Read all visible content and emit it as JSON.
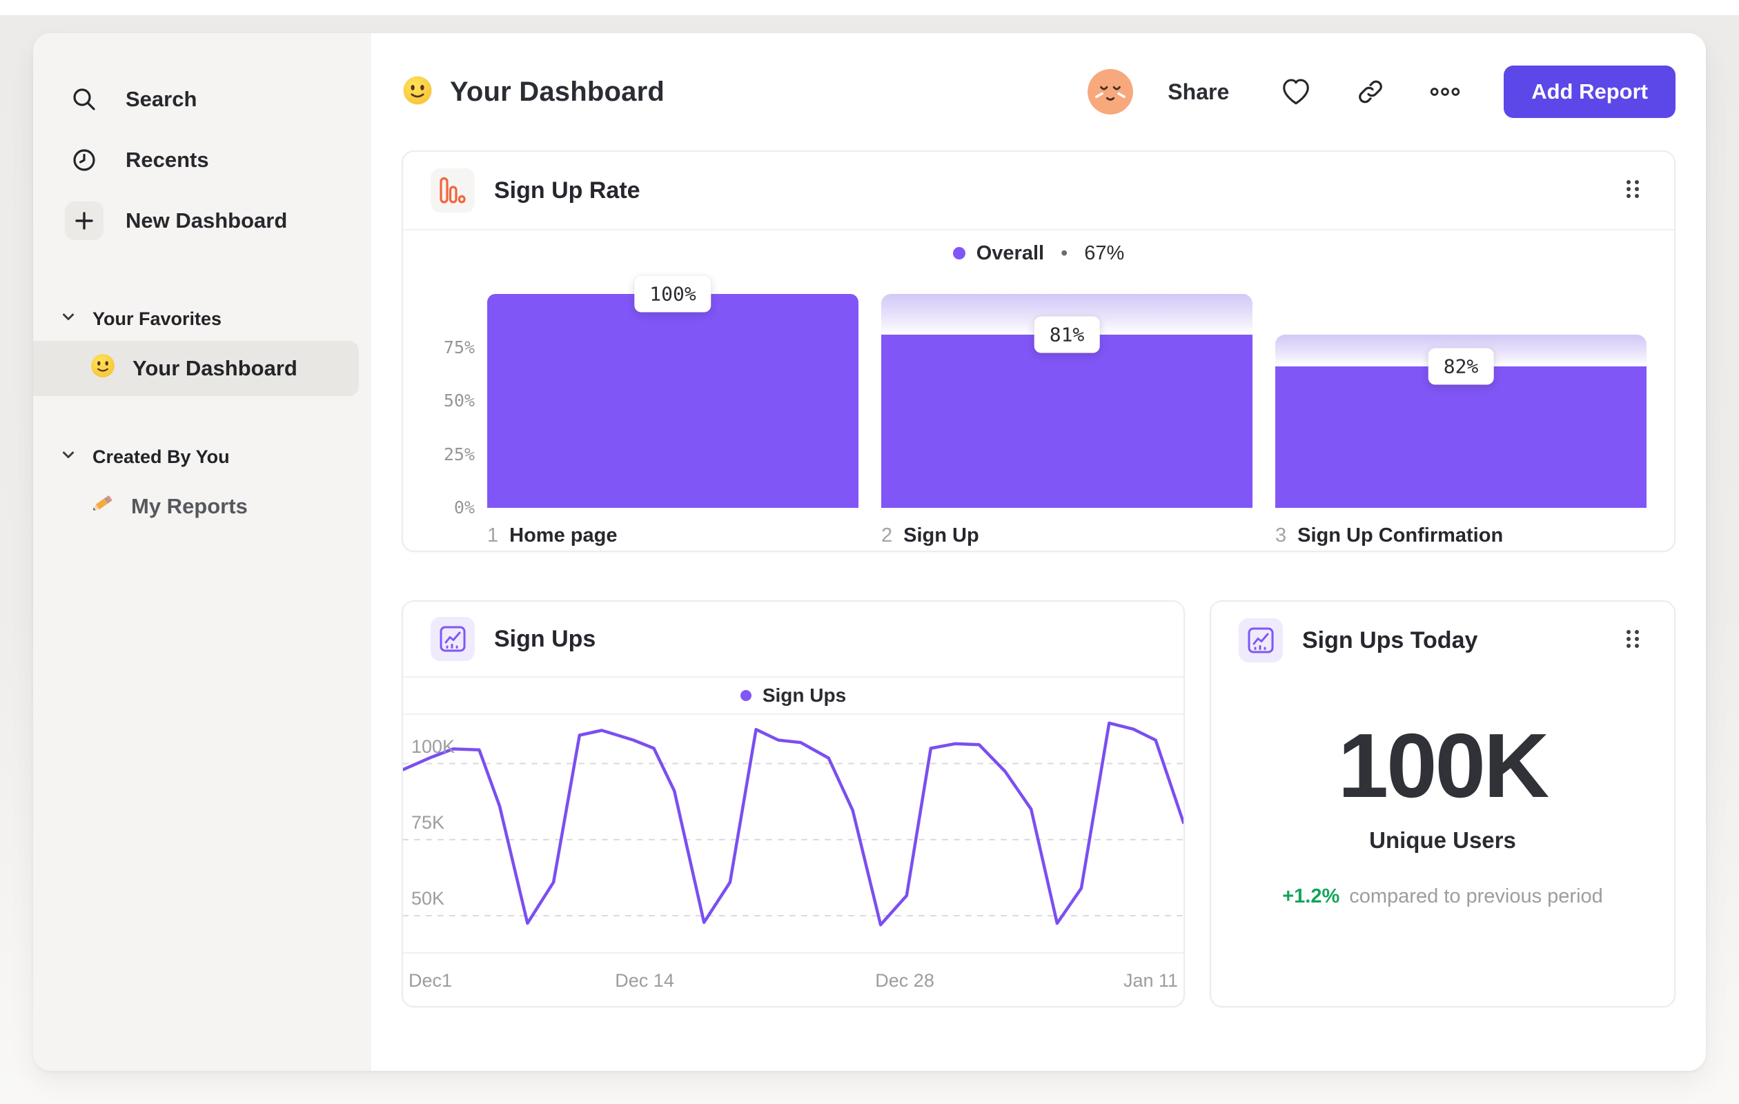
{
  "colors": {
    "accent_button": "#5C47E8",
    "series_purple": "#8156F6",
    "line_purple": "#7A4FF0",
    "funnel_orange": "#F2653C",
    "delta_green": "#13A45B"
  },
  "sidebar": {
    "nav": [
      {
        "label": "Search",
        "icon": "search-icon"
      },
      {
        "label": "Recents",
        "icon": "clock-icon"
      },
      {
        "label": "New Dashboard",
        "icon": "plus-icon"
      }
    ],
    "sections": [
      {
        "label": "Your Favorites",
        "icon": "chevron-down-icon",
        "items": [
          {
            "label": "Your Dashboard",
            "icon": "smiley-emoji",
            "selected": true
          }
        ]
      },
      {
        "label": "Created By You",
        "icon": "chevron-down-icon",
        "items": [
          {
            "label": "My Reports",
            "icon": "pencil-emoji",
            "selected": false
          }
        ]
      }
    ]
  },
  "header": {
    "title": "Your Dashboard",
    "title_emoji": "slightly-smiling-face-emoji",
    "avatar": "relieved-face-avatar",
    "share_label": "Share",
    "action_icons": [
      "heart-icon",
      "link-icon",
      "more-horizontal-icon"
    ],
    "add_report_label": "Add Report"
  },
  "cards": {
    "signup_rate": {
      "title": "Sign Up Rate",
      "icon": "funnel-bars-icon",
      "legend": {
        "swatch_color": "#8156F6",
        "name": "Overall",
        "separator": "•",
        "value": "67%"
      }
    },
    "sign_ups": {
      "title": "Sign Ups",
      "icon": "line-chart-icon",
      "legend": {
        "swatch_color": "#8156F6",
        "name": "Sign Ups"
      }
    },
    "sign_ups_today": {
      "title": "Sign Ups Today",
      "icon": "line-chart-icon",
      "value": "100K",
      "value_label": "Unique Users",
      "delta": "+1.2%",
      "delta_note": "compared to previous period"
    }
  },
  "chart_data": [
    {
      "type": "bar",
      "chart": "funnel",
      "title": "Sign Up Rate",
      "overall_conversion": "67%",
      "bar_color": "#8156F6",
      "ylim": [
        0,
        100
      ],
      "y_ticks": [
        {
          "label": "75%",
          "v": 75
        },
        {
          "label": "50%",
          "v": 50
        },
        {
          "label": "25%",
          "v": 25
        },
        {
          "label": "0%",
          "v": 0
        }
      ],
      "steps": [
        {
          "index": "1",
          "label": "Home page",
          "badge": "100%",
          "solid_pct": 100,
          "from_pct": 100
        },
        {
          "index": "2",
          "label": "Sign Up",
          "badge": "81%",
          "solid_pct": 81,
          "from_pct": 100
        },
        {
          "index": "3",
          "label": "Sign Up Confirmation",
          "badge": "82%",
          "solid_pct": 66,
          "from_pct": 81
        }
      ]
    },
    {
      "type": "line",
      "title": "Sign Ups",
      "x_range": [
        0,
        42
      ],
      "y_range": [
        38,
        116
      ],
      "unit": "K",
      "grid": "dashed-horizontal",
      "legend_position": "top-center",
      "gridlines": [
        {
          "label": "100K",
          "v": 100
        },
        {
          "label": "75K",
          "v": 75
        },
        {
          "label": "50K",
          "v": 50
        }
      ],
      "x_ticks": [
        {
          "label": "Dec1",
          "day": 0,
          "align": "left"
        },
        {
          "label": "Dec 14",
          "day": 13,
          "align": "center"
        },
        {
          "label": "Dec 28",
          "day": 27,
          "align": "center"
        },
        {
          "label": "Jan 11",
          "day": 41,
          "align": "right"
        }
      ],
      "series": [
        {
          "name": "Sign Ups",
          "color": "#7A4FF0",
          "points": [
            [
              0,
              98
            ],
            [
              1.5,
              102
            ],
            [
              2.7,
              104.8
            ],
            [
              4.1,
              104.5
            ],
            [
              5.2,
              86
            ],
            [
              6.7,
              47.5
            ],
            [
              8.1,
              61
            ],
            [
              9.5,
              109.3
            ],
            [
              10.7,
              110.9
            ],
            [
              12.4,
              107.7
            ],
            [
              13.5,
              105
            ],
            [
              14.6,
              91
            ],
            [
              16.2,
              47.8
            ],
            [
              17.6,
              61
            ],
            [
              19,
              111.2
            ],
            [
              20.2,
              107.7
            ],
            [
              21.4,
              106.9
            ],
            [
              22.9,
              101.8
            ],
            [
              24.2,
              84.6
            ],
            [
              25.7,
              47
            ],
            [
              27.1,
              56.6
            ],
            [
              28.4,
              105
            ],
            [
              29.7,
              106.5
            ],
            [
              31,
              106.2
            ],
            [
              32.4,
              97.4
            ],
            [
              33.8,
              85
            ],
            [
              35.2,
              47.5
            ],
            [
              36.5,
              59
            ],
            [
              38,
              113.3
            ],
            [
              39.3,
              111.3
            ],
            [
              40.5,
              107.7
            ],
            [
              42,
              80.6
            ]
          ]
        }
      ]
    }
  ]
}
